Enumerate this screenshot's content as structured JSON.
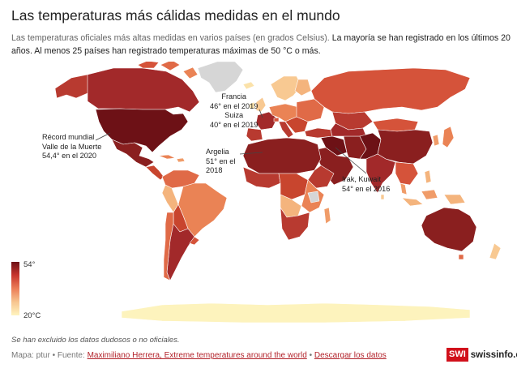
{
  "header": {
    "title": "Las temperaturas más cálidas medidas en el mundo",
    "subtitle_plain": "Las temperaturas oficiales más altas medidas en varios países (en grados Celsius).",
    "subtitle_highlight": "La mayoría se han registrado en los últimos 20 años. Al menos 25 países han registrado temperaturas máximas de 50 °C o más."
  },
  "annotations": {
    "death_valley": [
      "Récord mundial",
      "Valle de la Muerte",
      "54,4° en el 2020"
    ],
    "france_swiss": [
      "Francia",
      "46° en el 2019",
      "Suiza",
      "40° en el 2019"
    ],
    "algeria": [
      "Argelia",
      "51° en el",
      "2018"
    ],
    "iraq_kuwait": [
      "Irak, Kuwait",
      "54° en el 2016"
    ]
  },
  "legend": {
    "max_label": "54°",
    "min_label": "20°C"
  },
  "colors": {
    "c54": "#6d1116",
    "c52": "#8a1f1f",
    "c50": "#a2292a",
    "c48": "#b83a30",
    "c46": "#c8452e",
    "c44": "#d5533a",
    "c42": "#e06a47",
    "c40": "#ea8355",
    "c38": "#f09c69",
    "c36": "#f4b47d",
    "c34": "#f8c992",
    "c30": "#fbe2aa",
    "c20": "#fdf3bd",
    "nodata": "#d6d6d6"
  },
  "footer": {
    "note": "Se han excluido los datos dudosos o no oficiales.",
    "prefix": "Mapa: ptur • Fuente: ",
    "source_link": "Maximiliano Herrera, Extreme temperatures around the world",
    "separator": " • ",
    "download_link": "Descargar los datos",
    "brand_box": "SWI",
    "brand_site": "swissinfo.ch"
  }
}
